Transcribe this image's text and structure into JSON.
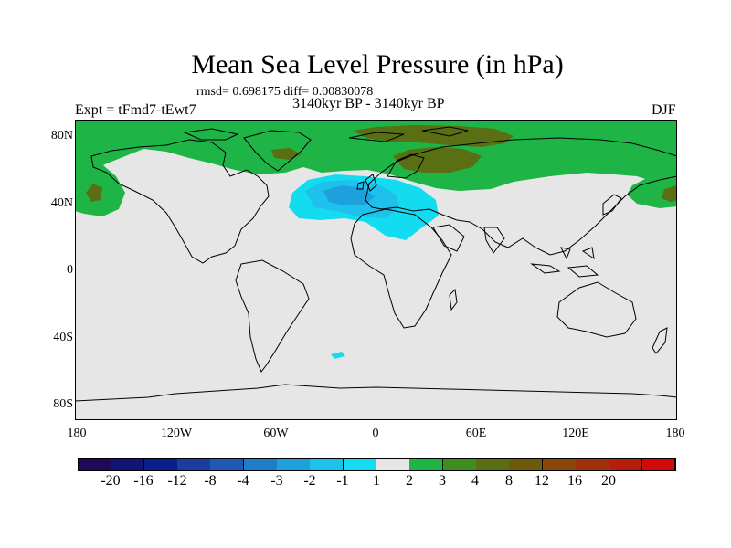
{
  "title": "Mean Sea Level Pressure (in hPa)",
  "stats": "rmsd= 0.698175 diff= 0.00830078",
  "period": "3140kyr BP - 3140kyr BP",
  "experiment": "Expt = tFmd7-tEwt7",
  "season": "DJF",
  "lat_labels": [
    "80N",
    "40N",
    "0",
    "40S",
    "80S"
  ],
  "lon_labels": [
    "180",
    "120W",
    "60W",
    "0",
    "60E",
    "120E",
    "180"
  ],
  "colorbar": {
    "colors": [
      "#1f0a5a",
      "#141478",
      "#0a1e8c",
      "#1e3ca0",
      "#1e5ab4",
      "#1e7ec8",
      "#1ea0dc",
      "#1ec0ec",
      "#14dcf0",
      "#e6e6e6",
      "#1eb446",
      "#418c1e",
      "#5a6e14",
      "#6e5a0a",
      "#8c460a",
      "#a0320a",
      "#b41e0a",
      "#d20a0a"
    ],
    "tick_labels": [
      "-20",
      "-16",
      "-12",
      "-8",
      "-4",
      "-3",
      "-2",
      "-1",
      "1",
      "2",
      "3",
      "4",
      "8",
      "12",
      "16",
      "20"
    ]
  },
  "map_colors": {
    "ocean_neutral": "#e6e6e6",
    "pos_1_2": "#1eb446",
    "pos_3_4": "#5a6e14",
    "neg_1_2": "#14dcf0",
    "neg_2_3": "#1ec0ec",
    "neg_3_4": "#1ea0dc",
    "coast": "#000000"
  }
}
